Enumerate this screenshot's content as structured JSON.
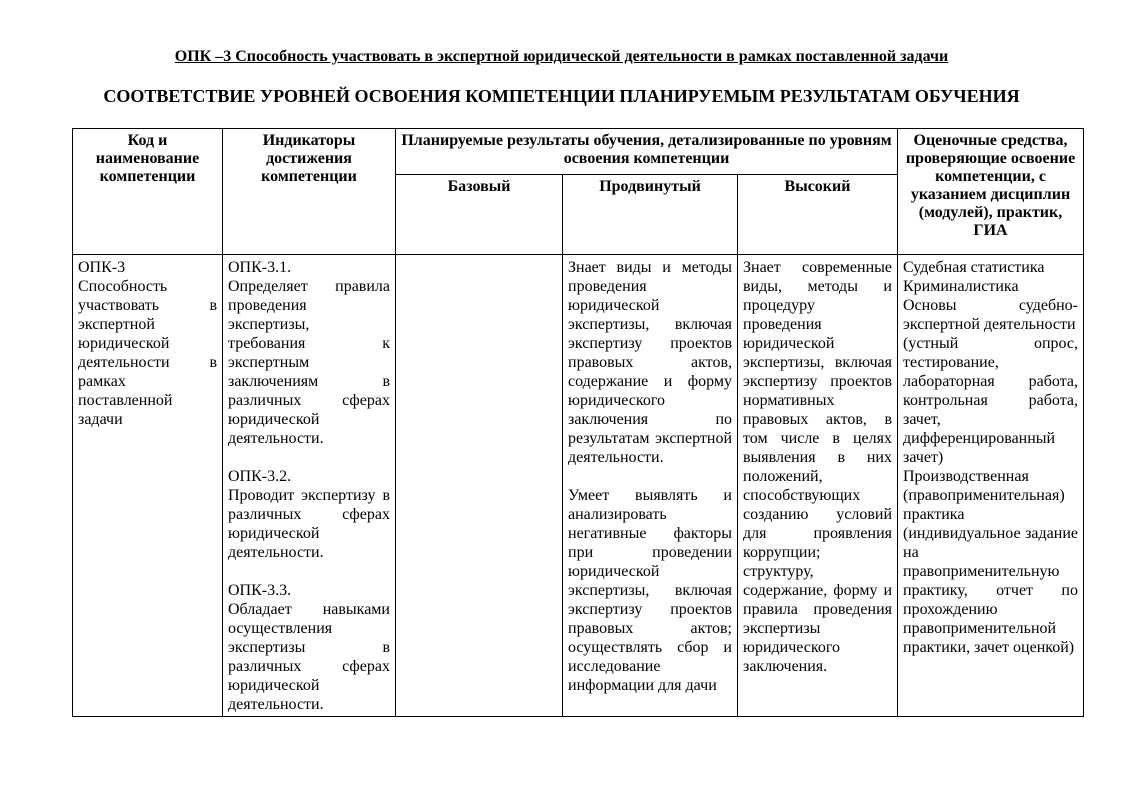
{
  "page": {
    "title_line1": "ОПК –3 Способность участвовать в экспертной юридической деятельности в рамках поставленной задачи",
    "title_line2": "СООТВЕТСТВИЕ УРОВНЕЙ ОСВОЕНИЯ КОМПЕТЕНЦИИ ПЛАНИРУЕМЫМ РЕЗУЛЬТАТАМ ОБУЧЕНИЯ"
  },
  "table": {
    "headers": {
      "col_code": "Код и наименование компетенции",
      "col_indicators": "Индикаторы достижения компетенции",
      "col_results_group": "Планируемые результаты обучения, детализированные по уровням освоения компетенции",
      "level_basic": "Базовый",
      "level_advanced": "Продвинутый",
      "level_high": "Высокий",
      "col_assessment": "Оценочные средства, проверяющие освоение компетенции, с указанием дисциплин (модулей), практик, ГИА"
    },
    "row": {
      "code": [
        "ОПК-3",
        "Способность участвовать в экспертной юридической деятельности в рамках поставленной задачи"
      ],
      "indicators": [
        "ОПК-3.1.",
        "Определяет правила проведения экспертизы, требования к экспертным заключениям в различных сферах юридической деятельности.",
        "",
        "ОПК-3.2.",
        "Проводит экспертизу в различных сферах юридической деятельности.",
        "",
        "ОПК-3.3.",
        "Обладает навыками осуществления экспертизы в различных сферах юридической деятельности."
      ],
      "basic": [],
      "advanced": [
        "Знает виды и методы проведения юридической экспертизы, включая экспертизу проектов правовых актов, содержание и форму юридического заключения по результатам экспертной деятельности.",
        "",
        "Умеет выявлять и анализировать негативные факторы при проведении юридической экспертизы, включая экспертизу проектов правовых актов; осуществлять сбор и исследование информации для дачи"
      ],
      "high": [
        "Знает современные виды, методы и процедуру проведения юридической экспертизы, включая экспертизу проектов нормативных правовых актов, в том числе в целях выявления в них положений, способствующих созданию условий для проявления коррупции; структуру, содержание, форму и правила проведения экспертизы юридического заключения."
      ],
      "assessment": [
        "Судебная статистика",
        "Криминалистика",
        "Основы судебно-экспертной деятельности",
        "(устный опрос, тестирование, лабораторная работа, контрольная работа, зачет, дифференцированный зачет)",
        "Производственная (правоприменительная) практика",
        "(индивидуальное задание на правоприменительную практику, отчет по прохождению правоприменительной практики, зачет оценкой)"
      ]
    }
  },
  "colors": {
    "text": "#000000",
    "border": "#000000",
    "background": "#ffffff"
  }
}
